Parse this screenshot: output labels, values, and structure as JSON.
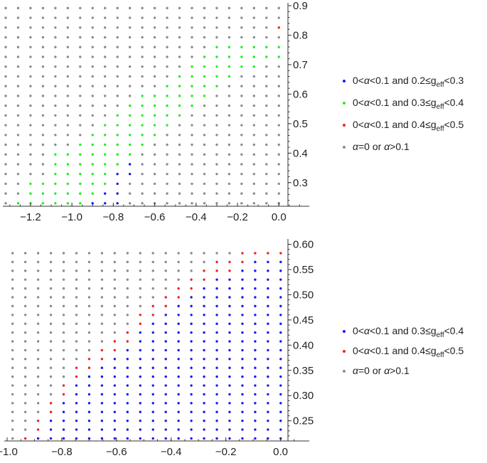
{
  "colors": {
    "blue": "#1a1aee",
    "green": "#22ee22",
    "red": "#ee2222",
    "gray": "#8c8c8c",
    "axis": "#333333"
  },
  "chart_data": [
    {
      "type": "scatter",
      "title": "",
      "xlabel": "",
      "ylabel": "",
      "xlim": [
        -1.32,
        0.14
      ],
      "ylim": [
        0.22,
        0.9
      ],
      "x_grid": {
        "start": -1.32,
        "step": 0.06,
        "count": 23
      },
      "y_grid": {
        "start": 0.23,
        "step": 0.0331,
        "count": 21
      },
      "x_ticks": [
        -1.2,
        -1.0,
        -0.8,
        -0.6,
        -0.4,
        -0.2,
        0.0
      ],
      "x_tick_labels": [
        "−1.2",
        "−1.0",
        "−0.8",
        "−0.6",
        "−0.4",
        "−0.2",
        "0.0"
      ],
      "y_ticks": [
        0.3,
        0.4,
        0.5,
        0.6,
        0.7,
        0.8,
        0.9
      ],
      "y_tick_labels": [
        "0.3",
        "0.4",
        "0.5",
        "0.6",
        "0.7",
        "0.8",
        "0.9"
      ],
      "grid": false,
      "legend_position": "right",
      "series": [
        {
          "name": "0<α<0.1 and 0.2≤g_eff<0.3",
          "color_key": "blue",
          "points": [
            [
              -0.9,
              0.23
            ],
            [
              -0.84,
              0.23
            ],
            [
              -0.84,
              0.263
            ],
            [
              -0.78,
              0.23
            ],
            [
              -0.78,
              0.263
            ],
            [
              -0.78,
              0.296
            ],
            [
              -0.78,
              0.329
            ],
            [
              -0.72,
              0.329
            ],
            [
              -0.72,
              0.362
            ]
          ]
        },
        {
          "name": "0<α<0.1 and 0.3≤g_eff<0.4",
          "color_key": "green",
          "points": [
            [
              -1.26,
              0.23
            ],
            [
              -1.2,
              0.23
            ],
            [
              -1.2,
              0.263
            ],
            [
              -1.2,
              0.296
            ],
            [
              -1.14,
              0.23
            ],
            [
              -1.14,
              0.263
            ],
            [
              -1.14,
              0.296
            ],
            [
              -1.08,
              0.23
            ],
            [
              -1.08,
              0.263
            ],
            [
              -1.08,
              0.296
            ],
            [
              -1.08,
              0.329
            ],
            [
              -1.08,
              0.362
            ],
            [
              -1.08,
              0.395
            ],
            [
              -1.02,
              0.23
            ],
            [
              -1.02,
              0.263
            ],
            [
              -1.02,
              0.296
            ],
            [
              -1.02,
              0.329
            ],
            [
              -1.02,
              0.362
            ],
            [
              -1.02,
              0.395
            ],
            [
              -0.96,
              0.23
            ],
            [
              -0.96,
              0.263
            ],
            [
              -0.96,
              0.296
            ],
            [
              -0.96,
              0.329
            ],
            [
              -0.96,
              0.362
            ],
            [
              -0.96,
              0.395
            ],
            [
              -0.96,
              0.428
            ],
            [
              -0.9,
              0.263
            ],
            [
              -0.9,
              0.296
            ],
            [
              -0.9,
              0.329
            ],
            [
              -0.9,
              0.362
            ],
            [
              -0.9,
              0.395
            ],
            [
              -0.9,
              0.428
            ],
            [
              -0.9,
              0.461
            ],
            [
              -0.84,
              0.296
            ],
            [
              -0.84,
              0.329
            ],
            [
              -0.84,
              0.362
            ],
            [
              -0.84,
              0.395
            ],
            [
              -0.84,
              0.428
            ],
            [
              -0.84,
              0.461
            ],
            [
              -0.84,
              0.494
            ],
            [
              -0.78,
              0.362
            ],
            [
              -0.78,
              0.395
            ],
            [
              -0.78,
              0.428
            ],
            [
              -0.78,
              0.461
            ],
            [
              -0.78,
              0.494
            ],
            [
              -0.78,
              0.527
            ],
            [
              -0.72,
              0.395
            ],
            [
              -0.72,
              0.428
            ],
            [
              -0.72,
              0.461
            ],
            [
              -0.72,
              0.494
            ],
            [
              -0.72,
              0.527
            ],
            [
              -0.72,
              0.56
            ],
            [
              -0.66,
              0.428
            ],
            [
              -0.66,
              0.461
            ],
            [
              -0.66,
              0.494
            ],
            [
              -0.66,
              0.527
            ],
            [
              -0.66,
              0.56
            ],
            [
              -0.66,
              0.593
            ],
            [
              -0.6,
              0.461
            ],
            [
              -0.6,
              0.494
            ],
            [
              -0.6,
              0.527
            ],
            [
              -0.6,
              0.56
            ],
            [
              -0.6,
              0.593
            ],
            [
              -0.54,
              0.494
            ],
            [
              -0.54,
              0.527
            ],
            [
              -0.54,
              0.56
            ],
            [
              -0.54,
              0.593
            ],
            [
              -0.54,
              0.626
            ],
            [
              -0.48,
              0.527
            ],
            [
              -0.48,
              0.56
            ],
            [
              -0.48,
              0.593
            ],
            [
              -0.48,
              0.626
            ],
            [
              -0.48,
              0.659
            ],
            [
              -0.42,
              0.56
            ],
            [
              -0.42,
              0.593
            ],
            [
              -0.42,
              0.626
            ],
            [
              -0.42,
              0.659
            ],
            [
              -0.42,
              0.692
            ],
            [
              -0.36,
              0.593
            ],
            [
              -0.36,
              0.626
            ],
            [
              -0.36,
              0.659
            ],
            [
              -0.36,
              0.692
            ],
            [
              -0.36,
              0.725
            ],
            [
              -0.3,
              0.626
            ],
            [
              -0.3,
              0.659
            ],
            [
              -0.3,
              0.692
            ],
            [
              -0.3,
              0.725
            ],
            [
              -0.3,
              0.758
            ],
            [
              -0.24,
              0.659
            ],
            [
              -0.24,
              0.692
            ],
            [
              -0.24,
              0.725
            ],
            [
              -0.24,
              0.758
            ],
            [
              -0.18,
              0.692
            ],
            [
              -0.18,
              0.725
            ],
            [
              -0.18,
              0.758
            ],
            [
              -0.12,
              0.692
            ],
            [
              -0.12,
              0.725
            ],
            [
              -0.12,
              0.758
            ],
            [
              -0.06,
              0.725
            ],
            [
              -0.06,
              0.758
            ],
            [
              0.0,
              0.725
            ],
            [
              0.0,
              0.758
            ]
          ]
        },
        {
          "name": "0<α<0.1 and 0.4≤g_eff<0.5",
          "color_key": "red",
          "points": [
            [
              0.0,
              0.824
            ]
          ]
        },
        {
          "name": "α=0 or α>0.1",
          "color_key": "gray",
          "points": "remaining grid"
        }
      ]
    },
    {
      "type": "scatter",
      "title": "",
      "xlabel": "",
      "ylabel": "",
      "xlim": [
        -1.0,
        0.1
      ],
      "ylim": [
        0.21,
        0.605
      ],
      "x_grid": {
        "start": -0.98,
        "step": 0.0467,
        "count": 22
      },
      "y_grid": {
        "start": 0.215,
        "step": 0.0175,
        "count": 22
      },
      "x_ticks": [
        -1.0,
        -0.8,
        -0.6,
        -0.4,
        -0.2,
        0.0
      ],
      "x_tick_labels": [
        "−1.0",
        "−0.8",
        "−0.6",
        "−0.4",
        "−0.2",
        "0.0"
      ],
      "y_ticks": [
        0.25,
        0.3,
        0.35,
        0.4,
        0.45,
        0.5,
        0.55,
        0.6
      ],
      "y_tick_labels": [
        "0.25",
        "0.30",
        "0.35",
        "0.40",
        "0.45",
        "0.50",
        "0.55",
        "0.60"
      ],
      "grid": false,
      "legend_position": "right",
      "band_rule": "for each column, red dots on the upper two rows of the coloured band, blue dots below, down to the bottom row",
      "band_top_y": [
        null,
        0.232,
        0.25,
        0.285,
        0.32,
        0.355,
        0.373,
        0.39,
        0.408,
        0.425,
        0.46,
        0.478,
        0.495,
        0.513,
        0.53,
        0.548,
        0.565,
        0.565,
        0.583,
        0.6,
        0.6,
        0.6
      ],
      "series": [
        {
          "name": "0<α<0.1 and 0.3≤g_eff<0.4",
          "color_key": "blue",
          "points": "band below red rows"
        },
        {
          "name": "0<α<0.1 and 0.4≤g_eff<0.5",
          "color_key": "red",
          "points": "top two rows of band"
        },
        {
          "name": "α=0 or α>0.1",
          "color_key": "gray",
          "points": "remaining grid"
        }
      ]
    }
  ],
  "legends": [
    {
      "entries": [
        {
          "color_key": "blue",
          "prefix": "0<",
          "alpha": "α",
          "mid": "<0.1 and 0.2≤g",
          "sub": "eff",
          "suffix": "<0.3"
        },
        {
          "color_key": "green",
          "prefix": "0<",
          "alpha": "α",
          "mid": "<0.1 and 0.3≤g",
          "sub": "eff",
          "suffix": "<0.4"
        },
        {
          "color_key": "red",
          "prefix": "0<",
          "alpha": "α",
          "mid": "<0.1 and 0.4≤g",
          "sub": "eff",
          "suffix": "<0.5"
        },
        {
          "color_key": "gray",
          "prefix": "",
          "alpha": "α",
          "mid": "=0 or ",
          "alpha2": "α",
          "suffix": ">0.1"
        }
      ]
    },
    {
      "entries": [
        {
          "color_key": "blue",
          "prefix": "0<",
          "alpha": "α",
          "mid": "<0.1 and 0.3≤g",
          "sub": "eff",
          "suffix": "<0.4"
        },
        {
          "color_key": "red",
          "prefix": "0<",
          "alpha": "α",
          "mid": "<0.1 and 0.4≤g",
          "sub": "eff",
          "suffix": "<0.5"
        },
        {
          "color_key": "gray",
          "prefix": "",
          "alpha": "α",
          "mid": "=0 or ",
          "alpha2": "α",
          "suffix": ">0.1"
        }
      ]
    }
  ]
}
